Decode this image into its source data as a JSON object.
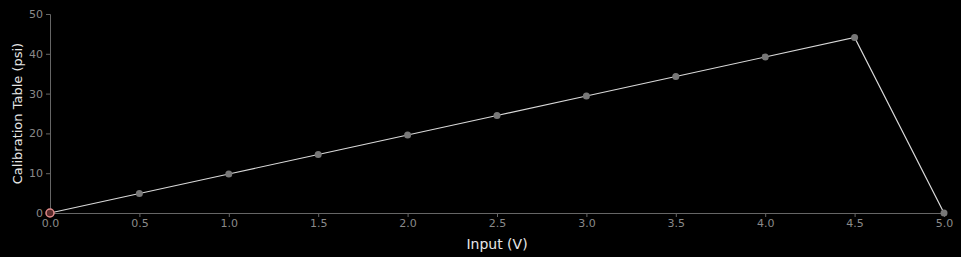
{
  "chart_data": {
    "type": "line",
    "x_label": "Input (V)",
    "y_label": "Calibration Table (psi)",
    "x": [
      0,
      0.5,
      1,
      1.5,
      2,
      2.5,
      3,
      3.5,
      4,
      4.5,
      5
    ],
    "values": [
      0,
      4.9,
      9.8,
      14.7,
      19.6,
      24.5,
      29.4,
      34.3,
      39.2,
      44.1,
      0
    ],
    "color": "#d9d9d9",
    "colors": [
      "#e08a8a",
      "#777777",
      "#777777",
      "#777777",
      "#777777",
      "#777777",
      "#777777",
      "#777777",
      "#777777",
      "#777777",
      "#777777"
    ],
    "marker": "circle",
    "xlim": [
      0,
      5
    ],
    "xticks": [
      {
        "value": 0,
        "label": "0.0"
      },
      0.5,
      {
        "value": 1,
        "label": "1.0"
      },
      1.5,
      {
        "value": 2,
        "label": "2.0"
      },
      2.5,
      {
        "value": 3,
        "label": "3.0"
      },
      3.5,
      {
        "value": 4,
        "label": "4.0"
      },
      4.5,
      {
        "value": 5,
        "label": "5.0"
      }
    ],
    "ylim": [
      0,
      50
    ],
    "yticks": [
      0,
      10,
      20,
      30,
      40,
      50
    ],
    "grid": false
  }
}
